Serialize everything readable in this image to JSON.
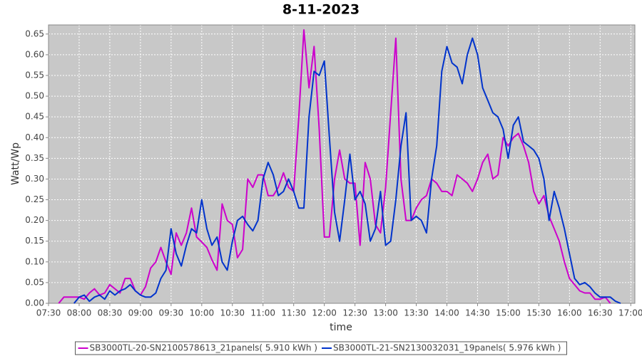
{
  "chart_data": {
    "type": "line",
    "title": "8-11-2023",
    "x_label": "time",
    "y_label": "Watt/Wp",
    "x": [
      "07:35",
      "07:40",
      "07:45",
      "07:50",
      "07:55",
      "08:00",
      "08:05",
      "08:10",
      "08:15",
      "08:20",
      "08:25",
      "08:30",
      "08:35",
      "08:40",
      "08:45",
      "08:50",
      "08:55",
      "09:00",
      "09:05",
      "09:10",
      "09:15",
      "09:20",
      "09:25",
      "09:30",
      "09:35",
      "09:40",
      "09:45",
      "09:50",
      "09:55",
      "10:00",
      "10:05",
      "10:10",
      "10:15",
      "10:20",
      "10:25",
      "10:30",
      "10:35",
      "10:40",
      "10:45",
      "10:50",
      "10:55",
      "11:00",
      "11:05",
      "11:10",
      "11:15",
      "11:20",
      "11:25",
      "11:30",
      "11:35",
      "11:40",
      "11:45",
      "11:50",
      "11:55",
      "12:00",
      "12:05",
      "12:10",
      "12:15",
      "12:20",
      "12:25",
      "12:30",
      "12:35",
      "12:40",
      "12:45",
      "12:50",
      "12:55",
      "13:00",
      "13:05",
      "13:10",
      "13:15",
      "13:20",
      "13:25",
      "13:30",
      "13:35",
      "13:40",
      "13:45",
      "13:50",
      "13:55",
      "14:00",
      "14:05",
      "14:10",
      "14:15",
      "14:20",
      "14:25",
      "14:30",
      "14:35",
      "14:40",
      "14:45",
      "14:50",
      "14:55",
      "15:00",
      "15:05",
      "15:10",
      "15:15",
      "15:20",
      "15:25",
      "15:30",
      "15:35",
      "15:40",
      "15:45",
      "15:50",
      "15:55",
      "16:00",
      "16:05",
      "16:10",
      "16:15",
      "16:20",
      "16:25",
      "16:30",
      "16:35",
      "16:40",
      "16:45",
      "16:50",
      "16:55"
    ],
    "series": [
      {
        "name": "SB3000TL-20-SN2100578613_21panels( 5.910 kWh )",
        "color": "#cc00cc",
        "values": [
          null,
          0,
          0.015,
          0.015,
          0.015,
          0.015,
          0.01,
          0.025,
          0.035,
          0.02,
          0.025,
          0.045,
          0.035,
          0.025,
          0.06,
          0.06,
          0.03,
          0.02,
          0.04,
          0.085,
          0.1,
          0.135,
          0.1,
          0.07,
          0.17,
          0.14,
          0.17,
          0.23,
          0.16,
          0.148,
          0.135,
          0.105,
          0.08,
          0.24,
          0.2,
          0.19,
          0.11,
          0.13,
          0.3,
          0.28,
          0.31,
          0.31,
          0.26,
          0.26,
          0.28,
          0.315,
          0.28,
          0.27,
          0.45,
          0.66,
          0.52,
          0.62,
          0.42,
          0.16,
          0.16,
          0.3,
          0.37,
          0.3,
          0.29,
          0.29,
          0.14,
          0.34,
          0.3,
          0.19,
          0.17,
          0.28,
          0.46,
          0.64,
          0.3,
          0.2,
          0.2,
          0.23,
          0.25,
          0.26,
          0.3,
          0.29,
          0.27,
          0.27,
          0.26,
          0.31,
          0.3,
          0.29,
          0.27,
          0.3,
          0.34,
          0.36,
          0.3,
          0.31,
          0.4,
          0.38,
          0.4,
          0.41,
          0.38,
          0.34,
          0.27,
          0.24,
          0.26,
          0.21,
          0.18,
          0.15,
          0.1,
          0.06,
          0.045,
          0.03,
          0.025,
          0.025,
          0.01,
          0.01,
          0.015,
          0,
          null,
          null,
          null
        ]
      },
      {
        "name": "SB3000TL-21-SN2130032031_19panels( 5.976 kWh )",
        "color": "#0033cc",
        "values": [
          null,
          null,
          null,
          null,
          0,
          0.015,
          0.02,
          0.005,
          0.015,
          0.02,
          0.01,
          0.03,
          0.02,
          0.03,
          0.035,
          0.045,
          0.03,
          0.02,
          0.015,
          0.015,
          0.025,
          0.06,
          0.08,
          0.18,
          0.12,
          0.09,
          0.14,
          0.18,
          0.17,
          0.25,
          0.18,
          0.14,
          0.16,
          0.1,
          0.08,
          0.15,
          0.2,
          0.21,
          0.19,
          0.175,
          0.2,
          0.3,
          0.34,
          0.31,
          0.26,
          0.27,
          0.3,
          0.27,
          0.23,
          0.23,
          0.45,
          0.56,
          0.55,
          0.585,
          0.4,
          0.22,
          0.15,
          0.25,
          0.36,
          0.25,
          0.27,
          0.24,
          0.15,
          0.18,
          0.27,
          0.14,
          0.15,
          0.25,
          0.38,
          0.46,
          0.2,
          0.21,
          0.2,
          0.17,
          0.3,
          0.38,
          0.56,
          0.62,
          0.58,
          0.57,
          0.53,
          0.6,
          0.64,
          0.6,
          0.52,
          0.49,
          0.46,
          0.45,
          0.42,
          0.35,
          0.43,
          0.45,
          0.39,
          0.38,
          0.37,
          0.35,
          0.3,
          0.2,
          0.27,
          0.23,
          0.18,
          0.12,
          0.06,
          0.045,
          0.05,
          0.04,
          0.025,
          0.015,
          0.015,
          0.015,
          0.005,
          0,
          null
        ]
      }
    ],
    "xlim": [
      "07:30",
      "17:04"
    ],
    "xticks": [
      "07:30",
      "08:00",
      "08:30",
      "09:00",
      "09:30",
      "10:00",
      "10:30",
      "11:00",
      "11:30",
      "12:00",
      "12:30",
      "13:00",
      "13:30",
      "14:00",
      "14:30",
      "15:00",
      "15:30",
      "16:00",
      "16:30",
      "17:00"
    ],
    "ylim": [
      0,
      0.672
    ],
    "yticks": [
      {
        "value": 0,
        "label": "0.00"
      },
      0.05,
      {
        "value": 0.1,
        "label": "0.10"
      },
      0.15,
      {
        "value": 0.2,
        "label": "0.20"
      },
      0.25,
      {
        "value": 0.3,
        "label": "0.30"
      },
      0.35,
      {
        "value": 0.4,
        "label": "0.40"
      },
      0.45,
      {
        "value": 0.5,
        "label": "0.50"
      },
      0.55,
      {
        "value": 0.6,
        "label": "0.60"
      },
      0.65
    ],
    "grid": true,
    "legend": "bottom",
    "background": "#c8c8c8"
  }
}
